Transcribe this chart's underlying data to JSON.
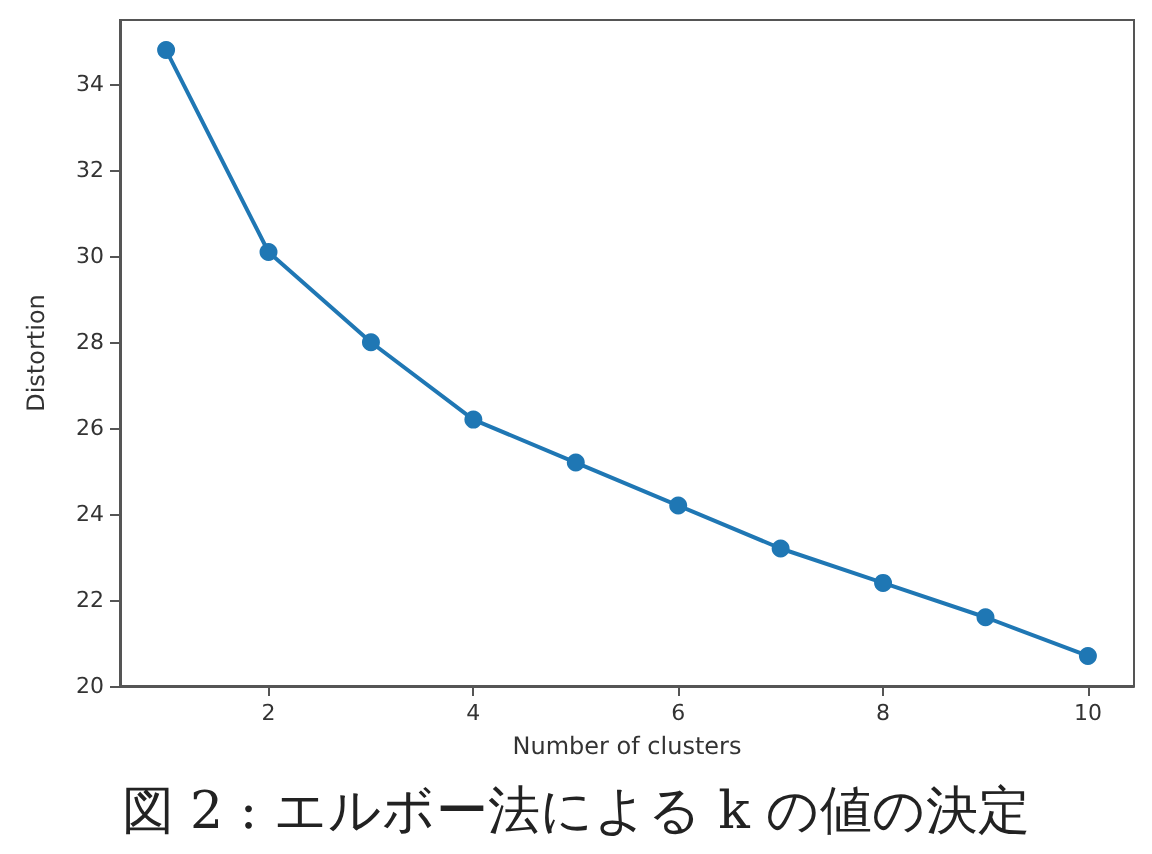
{
  "chart_data": {
    "type": "line",
    "xlabel": "Number of clusters",
    "ylabel": "Distortion",
    "annotations": [
      "図 2 : エルボー法による k の値の決定"
    ],
    "x": [
      1,
      2,
      3,
      4,
      5,
      6,
      7,
      8,
      9,
      10
    ],
    "series": [
      {
        "color": "#1f77b4",
        "values": [
          34.8,
          30.1,
          28.0,
          26.2,
          25.2,
          24.2,
          23.2,
          22.4,
          21.6,
          20.7
        ]
      }
    ],
    "xlim": [
      0.55,
      10.45
    ],
    "xticks": [
      2,
      4,
      6,
      8,
      10
    ],
    "ylim": [
      20,
      35.5
    ],
    "yticks": [
      20,
      22,
      24,
      26,
      28,
      30,
      32,
      34
    ],
    "grid": false,
    "marker": "circle",
    "line_style": "solid"
  }
}
